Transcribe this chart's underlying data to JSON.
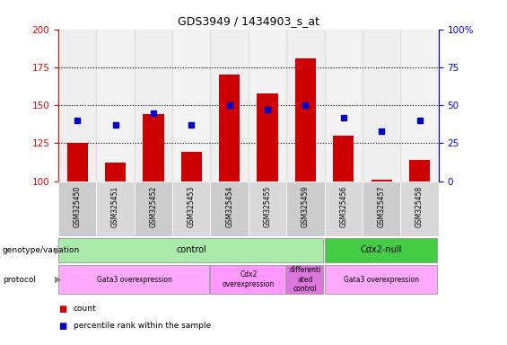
{
  "title": "GDS3949 / 1434903_s_at",
  "samples": [
    "GSM325450",
    "GSM325451",
    "GSM325452",
    "GSM325453",
    "GSM325454",
    "GSM325455",
    "GSM325459",
    "GSM325456",
    "GSM325457",
    "GSM325458"
  ],
  "counts": [
    125,
    112,
    144,
    119,
    170,
    158,
    181,
    130,
    101,
    114
  ],
  "percentile_ranks": [
    40,
    37,
    45,
    37,
    50,
    47,
    50,
    42,
    33,
    40
  ],
  "ylim_left": [
    100,
    200
  ],
  "ylim_right": [
    0,
    100
  ],
  "yticks_left": [
    100,
    125,
    150,
    175,
    200
  ],
  "yticks_right": [
    0,
    25,
    50,
    75,
    100
  ],
  "bar_color": "#cc0000",
  "dot_color": "#0000cc",
  "bar_bottom": 100,
  "genotype_groups": [
    {
      "label": "control",
      "start": 0,
      "end": 7,
      "color": "#aaeaaa"
    },
    {
      "label": "Cdx2-null",
      "start": 7,
      "end": 10,
      "color": "#44cc44"
    }
  ],
  "protocol_groups": [
    {
      "label": "Gata3 overexpression",
      "start": 0,
      "end": 4,
      "color": "#ffaaff"
    },
    {
      "label": "Cdx2\noverexpression",
      "start": 4,
      "end": 6,
      "color": "#ff99ff"
    },
    {
      "label": "differenti\nated\ncontrol",
      "start": 6,
      "end": 7,
      "color": "#dd77dd"
    },
    {
      "label": "Gata3 overexpression",
      "start": 7,
      "end": 10,
      "color": "#ffaaff"
    }
  ],
  "col_colors": [
    "#cccccc",
    "#d8d8d8",
    "#cccccc",
    "#d8d8d8",
    "#cccccc",
    "#d8d8d8",
    "#cccccc",
    "#d8d8d8",
    "#cccccc",
    "#d8d8d8"
  ],
  "legend_items": [
    {
      "label": "count",
      "color": "#cc0000"
    },
    {
      "label": "percentile rank within the sample",
      "color": "#0000cc"
    }
  ]
}
